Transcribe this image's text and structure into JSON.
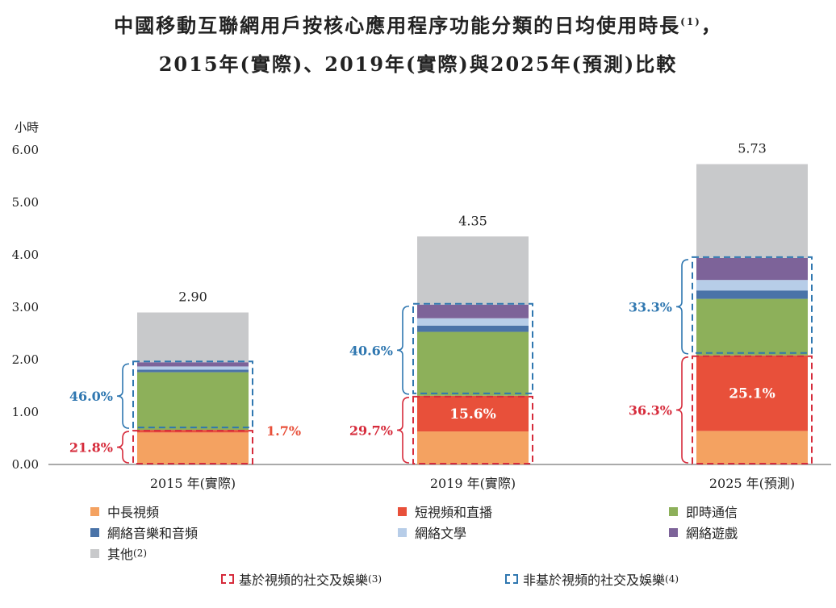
{
  "title": {
    "line1": "中國移動互聯網用戶按核心應用程序功能分類的日均使用時長",
    "line1_note": "(1)",
    "line1_end": "，",
    "line2": "2015年(實際)、2019年(實際)與2025年(預測)比較"
  },
  "chart_data": {
    "type": "bar",
    "stacked": true,
    "y_unit": "小時",
    "ylim": [
      0,
      6
    ],
    "yticks": [
      "0.00",
      "1.00",
      "2.00",
      "3.00",
      "4.00",
      "5.00",
      "6.00"
    ],
    "categories": [
      "2015 年(實際)",
      "2019 年(實際)",
      "2025 年(預測)"
    ],
    "totals": [
      "2.90",
      "4.35",
      "5.73"
    ],
    "series": [
      {
        "name": "中長視頻",
        "color": "#f4a261",
        "values": [
          0.61,
          0.63,
          0.64
        ]
      },
      {
        "name": "短視頻和直播",
        "color": "#e8503a",
        "values": [
          0.05,
          0.68,
          1.44
        ]
      },
      {
        "name": "即時通信",
        "color": "#8db05a",
        "values": [
          1.1,
          1.22,
          1.08
        ]
      },
      {
        "name": "網絡音樂和音頻",
        "color": "#4a73a8",
        "values": [
          0.05,
          0.12,
          0.16
        ]
      },
      {
        "name": "網絡文學",
        "color": "#b7cde8",
        "values": [
          0.06,
          0.14,
          0.2
        ]
      },
      {
        "name": "網絡遊戲",
        "color": "#7d6399",
        "values": [
          0.08,
          0.26,
          0.42
        ]
      },
      {
        "name": "其他",
        "note": "(2)",
        "color": "#c8c9cb",
        "values": [
          0.95,
          1.3,
          1.79
        ]
      }
    ],
    "inner_labels": [
      {
        "bar": 0,
        "series": 1,
        "text": "1.7%",
        "placement": "right",
        "color": "#e8503a"
      },
      {
        "bar": 1,
        "series": 1,
        "text": "15.6%",
        "placement": "inside",
        "color": "#ffffff"
      },
      {
        "bar": 2,
        "series": 1,
        "text": "25.1%",
        "placement": "inside",
        "color": "#ffffff"
      }
    ],
    "groups": [
      {
        "name": "基於視頻的社交及娛樂",
        "note": "(3)",
        "color": "#d62b3b",
        "series": [
          0,
          1
        ],
        "shares": [
          "21.8%",
          "29.7%",
          "36.3%"
        ]
      },
      {
        "name": "非基於視頻的社交及娛樂",
        "note": "(4)",
        "color": "#2f77b0",
        "series": [
          2,
          3,
          4,
          5
        ],
        "shares": [
          "46.0%",
          "40.6%",
          "33.3%"
        ]
      }
    ]
  }
}
